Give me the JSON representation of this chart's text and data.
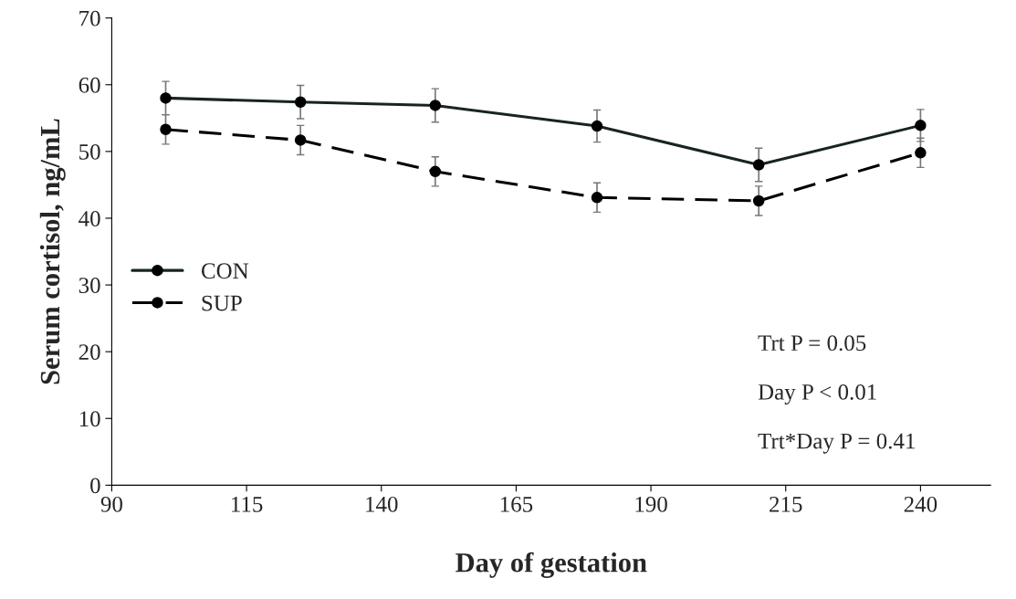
{
  "chart_data": {
    "type": "line",
    "xlabel": "Day of gestation",
    "ylabel": "Serum cortisol, ng/mL",
    "x": [
      100,
      125,
      150,
      180,
      210,
      240
    ],
    "series": [
      {
        "name": "CON",
        "color": "#17261c",
        "line_style": "solid",
        "values": [
          58.0,
          57.4,
          56.9,
          53.8,
          48.0,
          53.9
        ],
        "errors": [
          2.5,
          2.5,
          2.5,
          2.4,
          2.5,
          2.4
        ]
      },
      {
        "name": "SUP",
        "color": "#000000",
        "line_style": "dashed",
        "values": [
          53.3,
          51.7,
          47.0,
          43.1,
          42.6,
          49.8
        ],
        "errors": [
          2.2,
          2.2,
          2.2,
          2.2,
          2.2,
          2.2
        ]
      }
    ],
    "marker": "circle",
    "xlim": [
      90,
      253
    ],
    "xticks": [
      90,
      115,
      140,
      165,
      190,
      215,
      240
    ],
    "ylim": [
      0,
      70
    ],
    "yticks": [
      0,
      10,
      20,
      30,
      40,
      50,
      60,
      70
    ],
    "grid": false,
    "legend": "left",
    "annotations": [
      "Trt P = 0.05",
      "Day P < 0.01",
      "Trt*Day P = 0.41"
    ]
  }
}
